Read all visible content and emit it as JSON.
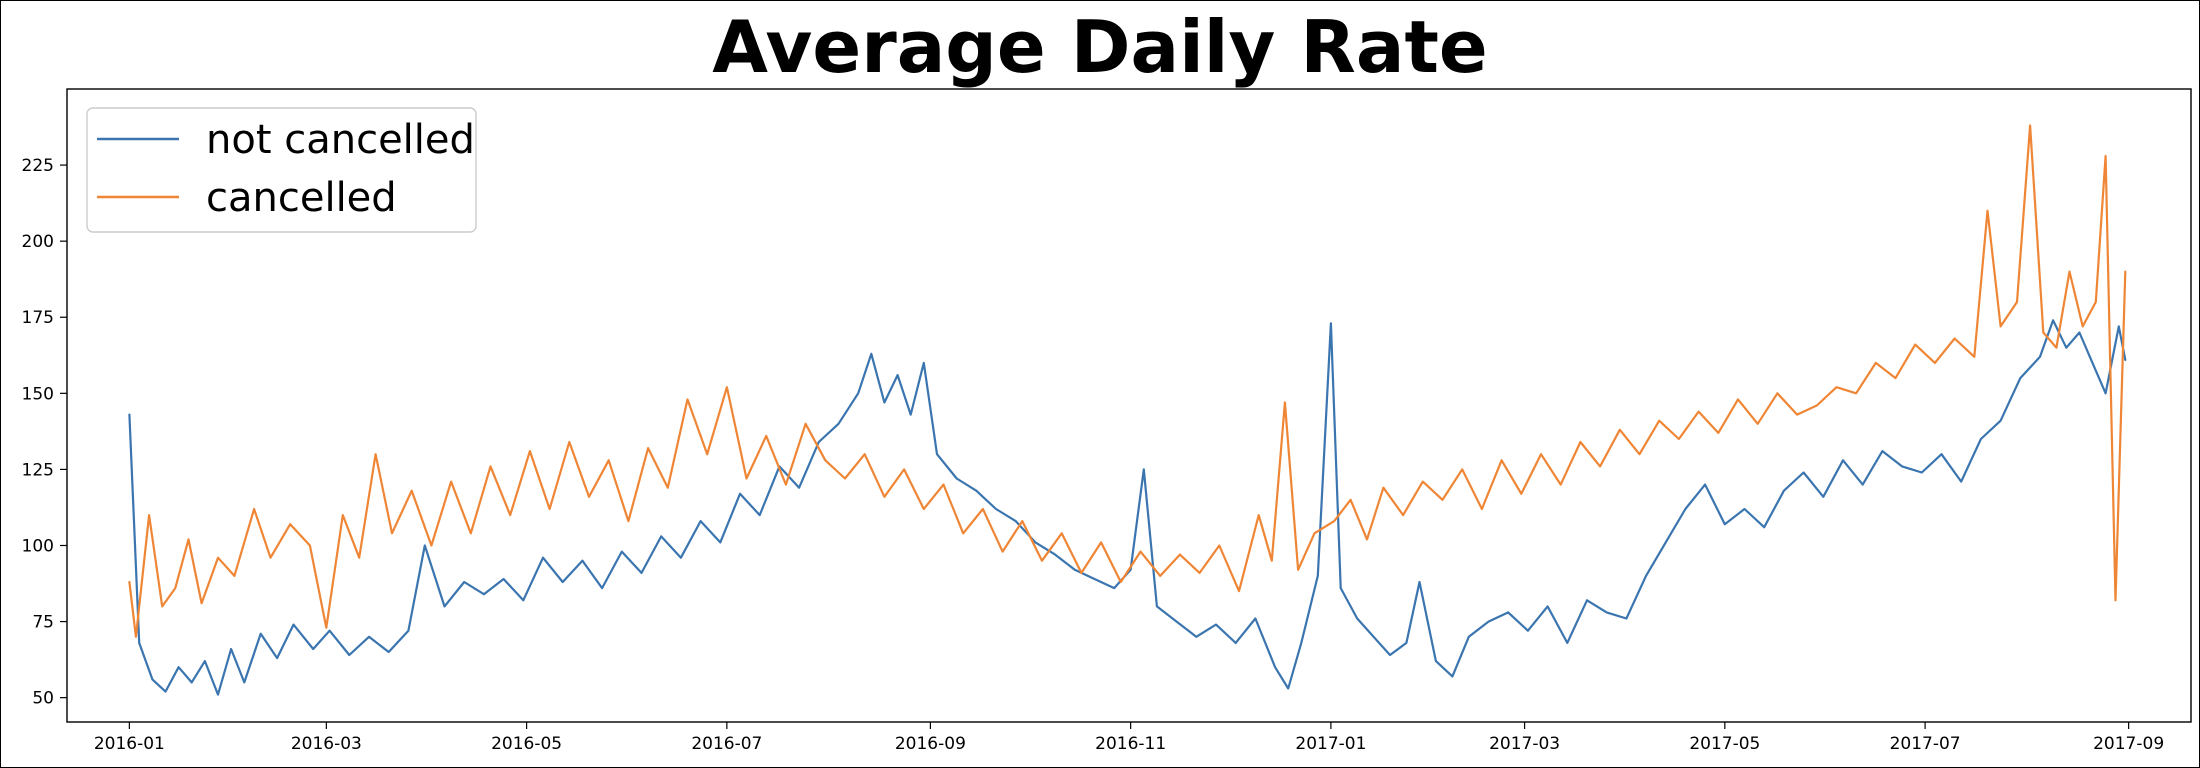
{
  "chart_data": {
    "type": "line",
    "title": "Average Daily Rate",
    "xlabel": "",
    "ylabel": "",
    "x_type": "date",
    "xlim": [
      "2015-12-13",
      "2017-09-20"
    ],
    "ylim": [
      42,
      250
    ],
    "x_ticks": [
      "2016-01",
      "2016-03",
      "2016-05",
      "2016-07",
      "2016-09",
      "2016-11",
      "2017-01",
      "2017-03",
      "2017-05",
      "2017-07",
      "2017-09"
    ],
    "y_ticks": [
      50,
      75,
      100,
      125,
      150,
      175,
      200,
      225
    ],
    "grid": false,
    "legend_position": "top-left",
    "series": [
      {
        "name": "not cancelled",
        "color": "#3b75af",
        "points": [
          [
            "2016-01-01",
            143
          ],
          [
            "2016-01-04",
            68
          ],
          [
            "2016-01-08",
            56
          ],
          [
            "2016-01-12",
            52
          ],
          [
            "2016-01-16",
            60
          ],
          [
            "2016-01-20",
            55
          ],
          [
            "2016-01-24",
            62
          ],
          [
            "2016-01-28",
            51
          ],
          [
            "2016-02-01",
            66
          ],
          [
            "2016-02-05",
            55
          ],
          [
            "2016-02-10",
            71
          ],
          [
            "2016-02-15",
            63
          ],
          [
            "2016-02-20",
            74
          ],
          [
            "2016-02-26",
            66
          ],
          [
            "2016-03-02",
            72
          ],
          [
            "2016-03-08",
            64
          ],
          [
            "2016-03-14",
            70
          ],
          [
            "2016-03-20",
            65
          ],
          [
            "2016-03-26",
            72
          ],
          [
            "2016-03-31",
            100
          ],
          [
            "2016-04-06",
            80
          ],
          [
            "2016-04-12",
            88
          ],
          [
            "2016-04-18",
            84
          ],
          [
            "2016-04-24",
            89
          ],
          [
            "2016-04-30",
            82
          ],
          [
            "2016-05-06",
            96
          ],
          [
            "2016-05-12",
            88
          ],
          [
            "2016-05-18",
            95
          ],
          [
            "2016-05-24",
            86
          ],
          [
            "2016-05-30",
            98
          ],
          [
            "2016-06-05",
            91
          ],
          [
            "2016-06-11",
            103
          ],
          [
            "2016-06-17",
            96
          ],
          [
            "2016-06-23",
            108
          ],
          [
            "2016-06-29",
            101
          ],
          [
            "2016-07-05",
            117
          ],
          [
            "2016-07-11",
            110
          ],
          [
            "2016-07-17",
            126
          ],
          [
            "2016-07-23",
            119
          ],
          [
            "2016-07-29",
            134
          ],
          [
            "2016-08-04",
            140
          ],
          [
            "2016-08-10",
            150
          ],
          [
            "2016-08-14",
            163
          ],
          [
            "2016-08-18",
            147
          ],
          [
            "2016-08-22",
            156
          ],
          [
            "2016-08-26",
            143
          ],
          [
            "2016-08-30",
            160
          ],
          [
            "2016-09-03",
            130
          ],
          [
            "2016-09-09",
            122
          ],
          [
            "2016-09-15",
            118
          ],
          [
            "2016-09-21",
            112
          ],
          [
            "2016-09-27",
            108
          ],
          [
            "2016-10-03",
            101
          ],
          [
            "2016-10-09",
            97
          ],
          [
            "2016-10-15",
            92
          ],
          [
            "2016-10-21",
            89
          ],
          [
            "2016-10-27",
            86
          ],
          [
            "2016-11-01",
            92
          ],
          [
            "2016-11-05",
            125
          ],
          [
            "2016-11-09",
            80
          ],
          [
            "2016-11-15",
            75
          ],
          [
            "2016-11-21",
            70
          ],
          [
            "2016-11-27",
            74
          ],
          [
            "2016-12-03",
            68
          ],
          [
            "2016-12-09",
            76
          ],
          [
            "2016-12-15",
            60
          ],
          [
            "2016-12-19",
            53
          ],
          [
            "2016-12-23",
            68
          ],
          [
            "2016-12-28",
            90
          ],
          [
            "2017-01-01",
            173
          ],
          [
            "2017-01-04",
            86
          ],
          [
            "2017-01-09",
            76
          ],
          [
            "2017-01-14",
            70
          ],
          [
            "2017-01-19",
            64
          ],
          [
            "2017-01-24",
            68
          ],
          [
            "2017-01-28",
            88
          ],
          [
            "2017-02-02",
            62
          ],
          [
            "2017-02-07",
            57
          ],
          [
            "2017-02-12",
            70
          ],
          [
            "2017-02-18",
            75
          ],
          [
            "2017-02-24",
            78
          ],
          [
            "2017-03-02",
            72
          ],
          [
            "2017-03-08",
            80
          ],
          [
            "2017-03-14",
            68
          ],
          [
            "2017-03-20",
            82
          ],
          [
            "2017-03-26",
            78
          ],
          [
            "2017-04-01",
            76
          ],
          [
            "2017-04-07",
            90
          ],
          [
            "2017-04-13",
            101
          ],
          [
            "2017-04-19",
            112
          ],
          [
            "2017-04-25",
            120
          ],
          [
            "2017-05-01",
            107
          ],
          [
            "2017-05-07",
            112
          ],
          [
            "2017-05-13",
            106
          ],
          [
            "2017-05-19",
            118
          ],
          [
            "2017-05-25",
            124
          ],
          [
            "2017-05-31",
            116
          ],
          [
            "2017-06-06",
            128
          ],
          [
            "2017-06-12",
            120
          ],
          [
            "2017-06-18",
            131
          ],
          [
            "2017-06-24",
            126
          ],
          [
            "2017-06-30",
            124
          ],
          [
            "2017-07-06",
            130
          ],
          [
            "2017-07-12",
            121
          ],
          [
            "2017-07-18",
            135
          ],
          [
            "2017-07-24",
            141
          ],
          [
            "2017-07-30",
            155
          ],
          [
            "2017-08-05",
            162
          ],
          [
            "2017-08-09",
            174
          ],
          [
            "2017-08-13",
            165
          ],
          [
            "2017-08-17",
            170
          ],
          [
            "2017-08-21",
            160
          ],
          [
            "2017-08-25",
            150
          ],
          [
            "2017-08-29",
            172
          ],
          [
            "2017-08-31",
            161
          ]
        ]
      },
      {
        "name": "cancelled",
        "color": "#ef8636",
        "points": [
          [
            "2016-01-01",
            88
          ],
          [
            "2016-01-03",
            70
          ],
          [
            "2016-01-07",
            110
          ],
          [
            "2016-01-11",
            80
          ],
          [
            "2016-01-15",
            86
          ],
          [
            "2016-01-19",
            102
          ],
          [
            "2016-01-23",
            81
          ],
          [
            "2016-01-28",
            96
          ],
          [
            "2016-02-02",
            90
          ],
          [
            "2016-02-08",
            112
          ],
          [
            "2016-02-13",
            96
          ],
          [
            "2016-02-19",
            107
          ],
          [
            "2016-02-25",
            100
          ],
          [
            "2016-03-01",
            73
          ],
          [
            "2016-03-06",
            110
          ],
          [
            "2016-03-11",
            96
          ],
          [
            "2016-03-16",
            130
          ],
          [
            "2016-03-21",
            104
          ],
          [
            "2016-03-27",
            118
          ],
          [
            "2016-04-02",
            100
          ],
          [
            "2016-04-08",
            121
          ],
          [
            "2016-04-14",
            104
          ],
          [
            "2016-04-20",
            126
          ],
          [
            "2016-04-26",
            110
          ],
          [
            "2016-05-02",
            131
          ],
          [
            "2016-05-08",
            112
          ],
          [
            "2016-05-14",
            134
          ],
          [
            "2016-05-20",
            116
          ],
          [
            "2016-05-26",
            128
          ],
          [
            "2016-06-01",
            108
          ],
          [
            "2016-06-07",
            132
          ],
          [
            "2016-06-13",
            119
          ],
          [
            "2016-06-19",
            148
          ],
          [
            "2016-06-25",
            130
          ],
          [
            "2016-07-01",
            152
          ],
          [
            "2016-07-07",
            122
          ],
          [
            "2016-07-13",
            136
          ],
          [
            "2016-07-19",
            120
          ],
          [
            "2016-07-25",
            140
          ],
          [
            "2016-07-31",
            128
          ],
          [
            "2016-08-06",
            122
          ],
          [
            "2016-08-12",
            130
          ],
          [
            "2016-08-18",
            116
          ],
          [
            "2016-08-24",
            125
          ],
          [
            "2016-08-30",
            112
          ],
          [
            "2016-09-05",
            120
          ],
          [
            "2016-09-11",
            104
          ],
          [
            "2016-09-17",
            112
          ],
          [
            "2016-09-23",
            98
          ],
          [
            "2016-09-29",
            108
          ],
          [
            "2016-10-05",
            95
          ],
          [
            "2016-10-11",
            104
          ],
          [
            "2016-10-17",
            91
          ],
          [
            "2016-10-23",
            101
          ],
          [
            "2016-10-29",
            88
          ],
          [
            "2016-11-04",
            98
          ],
          [
            "2016-11-10",
            90
          ],
          [
            "2016-11-16",
            97
          ],
          [
            "2016-11-22",
            91
          ],
          [
            "2016-11-28",
            100
          ],
          [
            "2016-12-04",
            85
          ],
          [
            "2016-12-10",
            110
          ],
          [
            "2016-12-14",
            95
          ],
          [
            "2016-12-18",
            147
          ],
          [
            "2016-12-22",
            92
          ],
          [
            "2016-12-27",
            104
          ],
          [
            "2017-01-02",
            108
          ],
          [
            "2017-01-07",
            115
          ],
          [
            "2017-01-12",
            102
          ],
          [
            "2017-01-17",
            119
          ],
          [
            "2017-01-23",
            110
          ],
          [
            "2017-01-29",
            121
          ],
          [
            "2017-02-04",
            115
          ],
          [
            "2017-02-10",
            125
          ],
          [
            "2017-02-16",
            112
          ],
          [
            "2017-02-22",
            128
          ],
          [
            "2017-02-28",
            117
          ],
          [
            "2017-03-06",
            130
          ],
          [
            "2017-03-12",
            120
          ],
          [
            "2017-03-18",
            134
          ],
          [
            "2017-03-24",
            126
          ],
          [
            "2017-03-30",
            138
          ],
          [
            "2017-04-05",
            130
          ],
          [
            "2017-04-11",
            141
          ],
          [
            "2017-04-17",
            135
          ],
          [
            "2017-04-23",
            144
          ],
          [
            "2017-04-29",
            137
          ],
          [
            "2017-05-05",
            148
          ],
          [
            "2017-05-11",
            140
          ],
          [
            "2017-05-17",
            150
          ],
          [
            "2017-05-23",
            143
          ],
          [
            "2017-05-29",
            146
          ],
          [
            "2017-06-04",
            152
          ],
          [
            "2017-06-10",
            150
          ],
          [
            "2017-06-16",
            160
          ],
          [
            "2017-06-22",
            155
          ],
          [
            "2017-06-28",
            166
          ],
          [
            "2017-07-04",
            160
          ],
          [
            "2017-07-10",
            168
          ],
          [
            "2017-07-16",
            162
          ],
          [
            "2017-07-20",
            210
          ],
          [
            "2017-07-24",
            172
          ],
          [
            "2017-07-29",
            180
          ],
          [
            "2017-08-02",
            238
          ],
          [
            "2017-08-06",
            170
          ],
          [
            "2017-08-10",
            165
          ],
          [
            "2017-08-14",
            190
          ],
          [
            "2017-08-18",
            172
          ],
          [
            "2017-08-22",
            180
          ],
          [
            "2017-08-25",
            228
          ],
          [
            "2017-08-28",
            82
          ],
          [
            "2017-08-31",
            190
          ]
        ]
      }
    ]
  }
}
